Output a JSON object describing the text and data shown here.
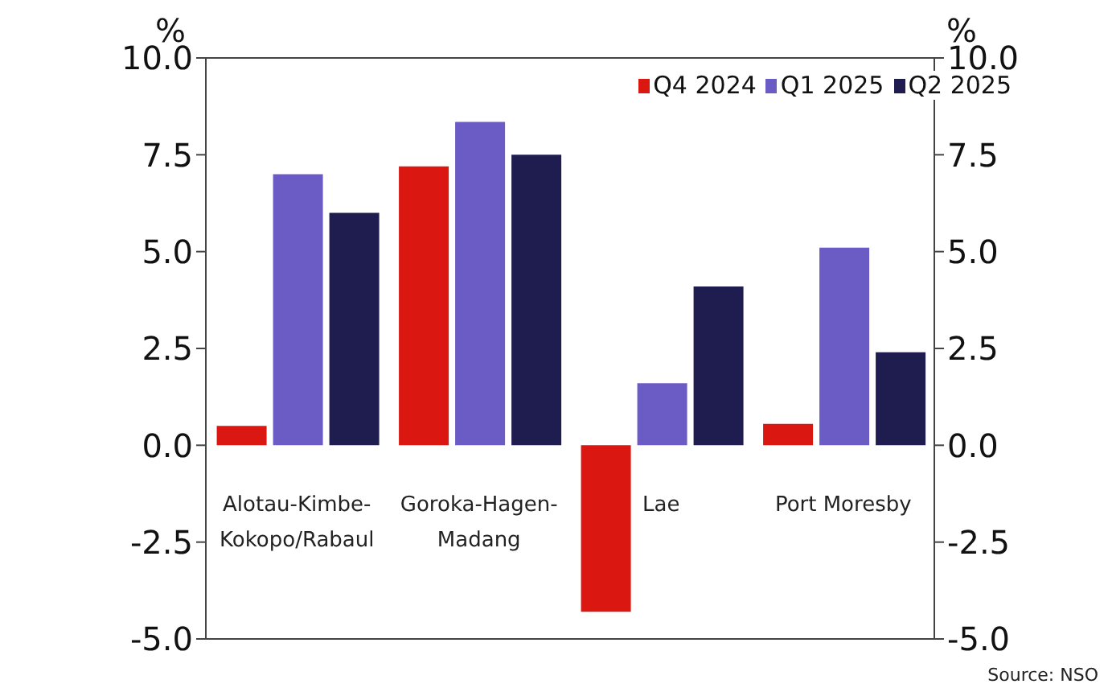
{
  "chart_data": {
    "type": "bar",
    "categories": [
      "Alotau-Kimbe-Kokopo/Rabaul",
      "Goroka-Hagen-Madang",
      "Lae",
      "Port Moresby"
    ],
    "series": [
      {
        "name": "Q4 2024",
        "color": "#da1710",
        "values": [
          0.5,
          7.2,
          -4.3,
          0.55
        ]
      },
      {
        "name": "Q1 2025",
        "color": "#6b5bc4",
        "values": [
          7.0,
          8.35,
          1.6,
          5.1
        ]
      },
      {
        "name": "Q2 2025",
        "color": "#1f1c4f",
        "values": [
          6.0,
          7.5,
          4.1,
          2.4
        ]
      }
    ],
    "ylabel": "%",
    "y2label": "%",
    "ylim": [
      -5,
      10
    ],
    "yticks": [
      {
        "value": -5,
        "label": "-5.0"
      },
      {
        "value": -2.5,
        "label": "-2.5"
      },
      {
        "value": 0,
        "label": "0.0"
      },
      {
        "value": 2.5,
        "label": "2.5"
      },
      {
        "value": 5,
        "label": "5.0"
      },
      {
        "value": 7.5,
        "label": "7.5"
      },
      {
        "value": 10,
        "label": "10.0"
      }
    ],
    "y2lim": [
      -5,
      10
    ],
    "y2ticks": [
      {
        "value": -5,
        "label": "-5.0"
      },
      {
        "value": -2.5,
        "label": "-2.5"
      },
      {
        "value": 0,
        "label": "0.0"
      },
      {
        "value": 2.5,
        "label": "2.5"
      },
      {
        "value": 5,
        "label": "5.0"
      },
      {
        "value": 7.5,
        "label": "7.5"
      },
      {
        "value": 10,
        "label": "10.0"
      }
    ],
    "grid": false,
    "legend": "top right",
    "annotations": [
      "Source: NSO"
    ]
  }
}
